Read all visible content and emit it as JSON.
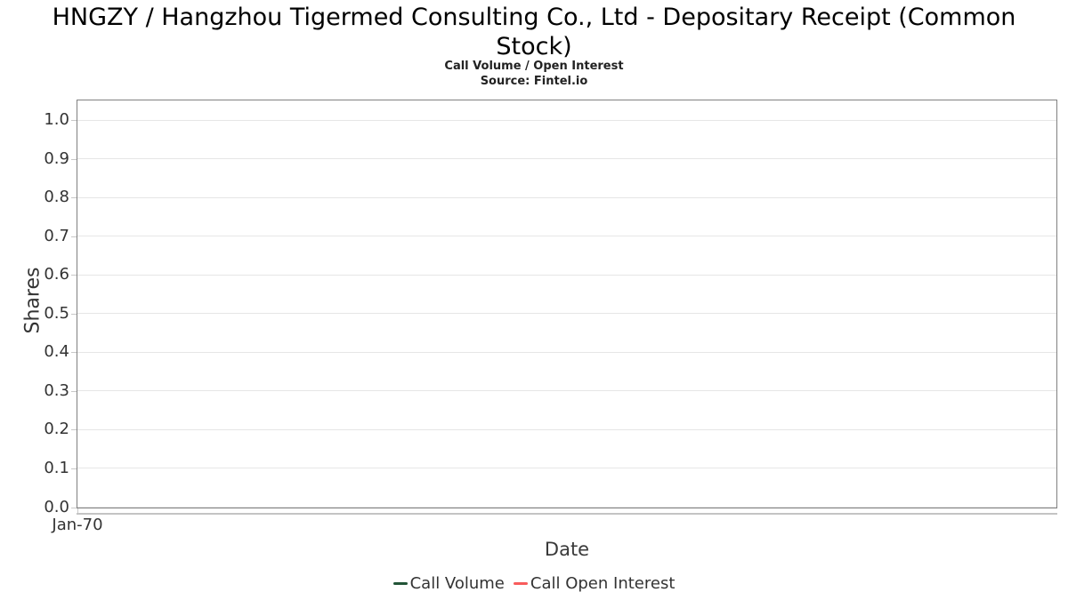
{
  "chart_data": {
    "type": "line",
    "title": "HNGZY / Hangzhou Tigermed Consulting Co., Ltd - Depositary Receipt (Common Stock)",
    "subtitle": "Call Volume / Open Interest",
    "source": "Source: Fintel.io",
    "xlabel": "Date",
    "ylabel": "Shares",
    "x_tick_labels": [
      "Jan-70"
    ],
    "y_tick_labels": [
      "0.0",
      "0.1",
      "0.2",
      "0.3",
      "0.4",
      "0.5",
      "0.6",
      "0.7",
      "0.8",
      "0.9",
      "1.0"
    ],
    "ylim": [
      0,
      1.05
    ],
    "grid": "horizontal",
    "legend_position": "bottom-center",
    "plot_empty": true,
    "series": [
      {
        "name": "Call Volume",
        "color": "#225437",
        "values": []
      },
      {
        "name": "Call Open Interest",
        "color": "#f85c5c",
        "values": []
      }
    ]
  },
  "colors": {
    "grid": "#e6e6e6",
    "plot_border": "#808080",
    "axis_line": "#c4c4c4",
    "tick_mark": "#c8c8c8",
    "tick_text": "#333333",
    "title_text": "#000000"
  }
}
